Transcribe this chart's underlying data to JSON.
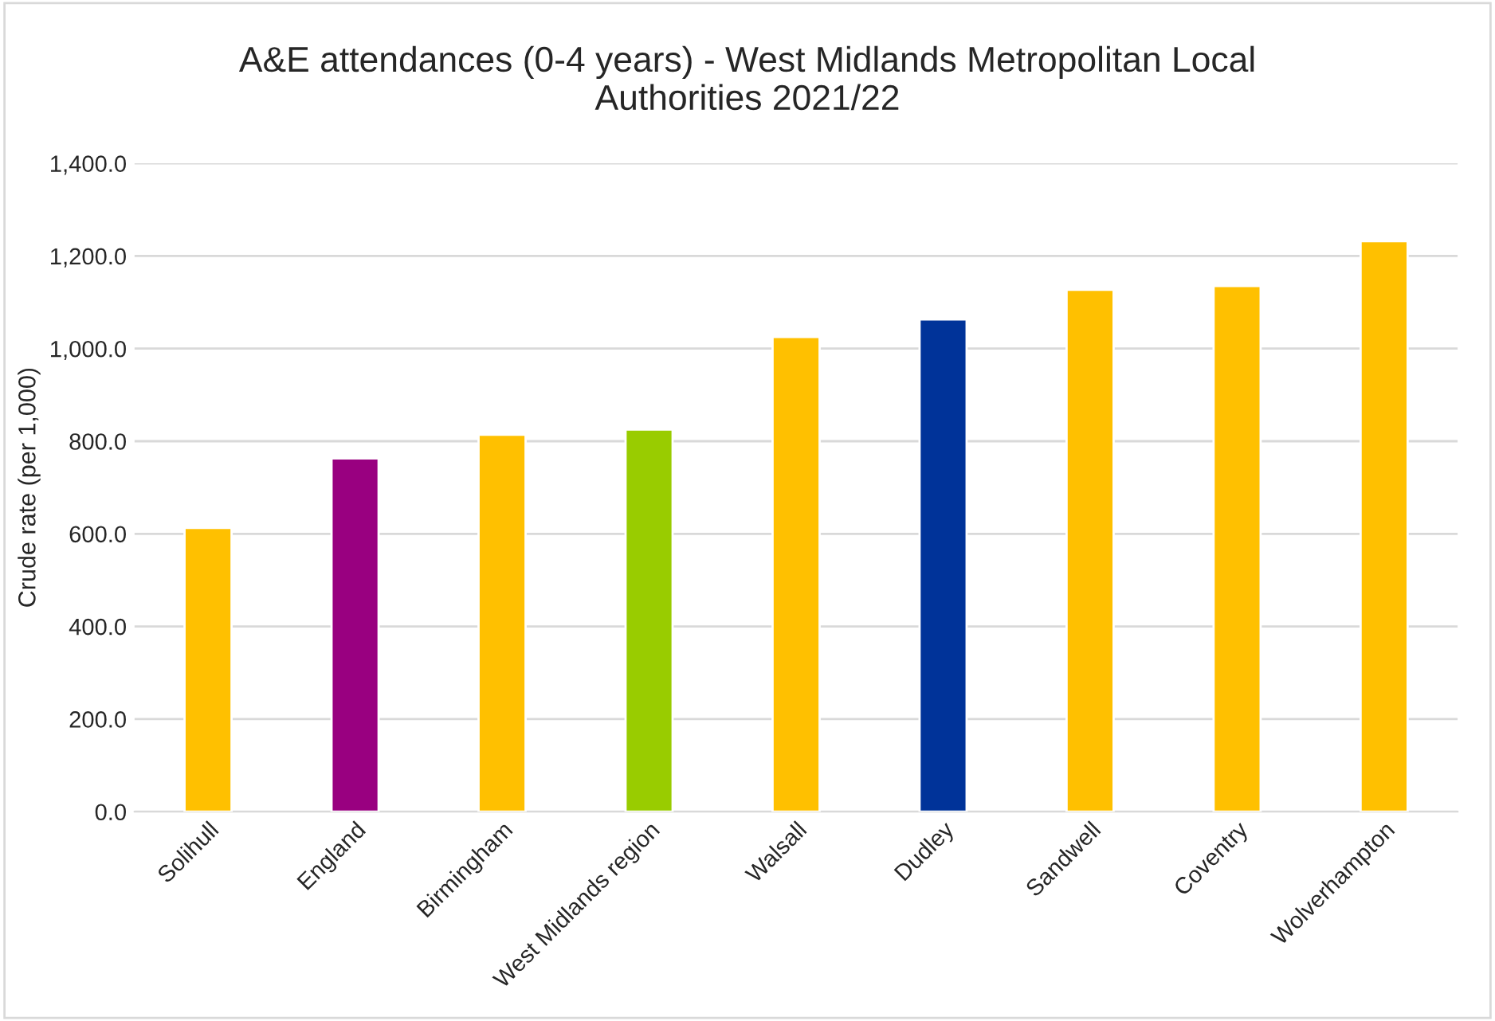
{
  "chart_data": {
    "type": "bar",
    "title": "A&E attendances (0-4 years) - West Midlands Metropolitan Local\nAuthorities 2021/22",
    "ylabel": "Crude rate (per 1,000)",
    "categories": [
      "Solihull",
      "England",
      "Birmingham",
      "West Midlands region",
      "Walsall",
      "Dudley",
      "Sandwell",
      "Coventry",
      "Wolverhampton"
    ],
    "values": [
      613,
      763,
      814,
      825,
      1025,
      1063,
      1127,
      1135,
      1232
    ],
    "colors": [
      "#ffc000",
      "#990080",
      "#ffc000",
      "#99cc00",
      "#ffc000",
      "#003399",
      "#ffc000",
      "#ffc000",
      "#ffc000"
    ],
    "ylim": [
      0,
      1400
    ],
    "yticks": [
      {
        "value": 0,
        "label": "0.0"
      },
      {
        "value": 200,
        "label": "200.0"
      },
      {
        "value": 400,
        "label": "400.0"
      },
      {
        "value": 600,
        "label": "600.0"
      },
      {
        "value": 800,
        "label": "800.0"
      },
      {
        "value": 1000,
        "label": "1,000.0"
      },
      {
        "value": 1200,
        "label": "1,200.0"
      },
      {
        "value": 1400,
        "label": "1,400.0"
      }
    ],
    "grid": "y"
  }
}
